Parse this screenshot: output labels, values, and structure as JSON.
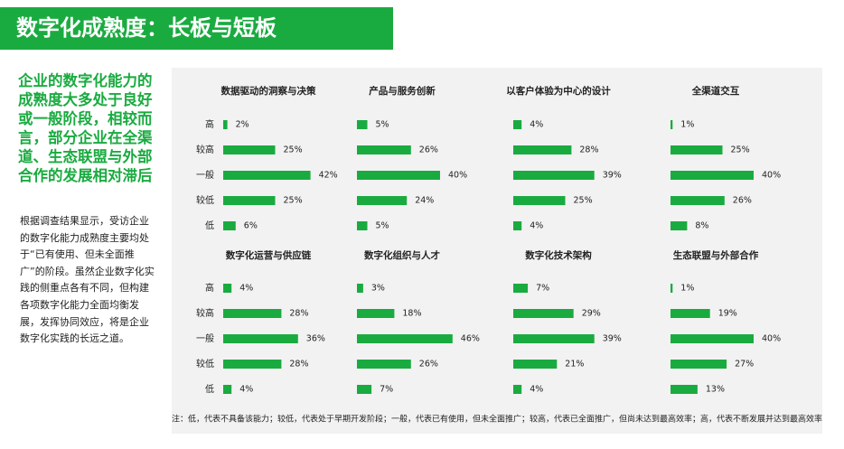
{
  "header": {
    "title": "数字化成熟度：长板与短板"
  },
  "summary": "企业的数字化能力的成熟度大多处于良好或一般阶段，相较而言，部分企业在全渠道、生态联盟与外部合作的发展相对滞后",
  "paragraph": "根据调查结果显示，受访企业的数字化能力成熟度主要均处于“已有使用、但未全面推广”的阶段。虽然企业数字化实践的侧重点各有不同，但构建各项数字化能力全面均衡发展，发挥协同效应，将是企业数字化实践的长远之道。",
  "footnote": "注：低，代表不具备该能力；较低，代表处于早期开发阶段；一般，代表已有使用，但未全面推广；较高，代表已全面推广，但尚未达到最高效率；高，代表不断发展并达到最高效率",
  "chart_data": [
    {
      "type": "bar",
      "title": "数据驱动的洞察与决策",
      "categories": [
        "高",
        "较高",
        "一般",
        "较低",
        "低"
      ],
      "values": [
        2,
        25,
        42,
        25,
        6
      ],
      "value_labels": [
        "2%",
        "25%",
        "42%",
        "25%",
        "6%"
      ],
      "color": "#1aab40"
    },
    {
      "type": "bar",
      "title": "产品与服务创新",
      "values": [
        5,
        26,
        40,
        24,
        5
      ],
      "value_labels": [
        "5%",
        "26%",
        "40%",
        "24%",
        "5%"
      ],
      "color": "#1aab40"
    },
    {
      "type": "bar",
      "title": "以客户体验为中心的设计",
      "values": [
        4,
        28,
        39,
        25,
        4
      ],
      "value_labels": [
        "4%",
        "28%",
        "39%",
        "25%",
        "4%"
      ],
      "color": "#1aab40"
    },
    {
      "type": "bar",
      "title": "全渠道交互",
      "values": [
        1,
        25,
        40,
        26,
        8
      ],
      "value_labels": [
        "1%",
        "25%",
        "40%",
        "26%",
        "8%"
      ],
      "color": "#1aab40"
    },
    {
      "type": "bar",
      "title": "数字化运营与供应链",
      "categories": [
        "高",
        "较高",
        "一般",
        "较低",
        "低"
      ],
      "values": [
        4,
        28,
        36,
        28,
        4
      ],
      "value_labels": [
        "4%",
        "28%",
        "36%",
        "28%",
        "4%"
      ],
      "color": "#1aab40"
    },
    {
      "type": "bar",
      "title": "数字化组织与人才",
      "values": [
        3,
        18,
        46,
        26,
        7
      ],
      "value_labels": [
        "3%",
        "18%",
        "46%",
        "26%",
        "7%"
      ],
      "color": "#1aab40"
    },
    {
      "type": "bar",
      "title": "数字化技术架构",
      "values": [
        7,
        29,
        39,
        21,
        4
      ],
      "value_labels": [
        "7%",
        "29%",
        "39%",
        "21%",
        "4%"
      ],
      "color": "#1aab40"
    },
    {
      "type": "bar",
      "title": "生态联盟与外部合作",
      "values": [
        1,
        19,
        40,
        27,
        13
      ],
      "value_labels": [
        "1%",
        "19%",
        "40%",
        "27%",
        "13%"
      ],
      "color": "#1aab40"
    }
  ]
}
